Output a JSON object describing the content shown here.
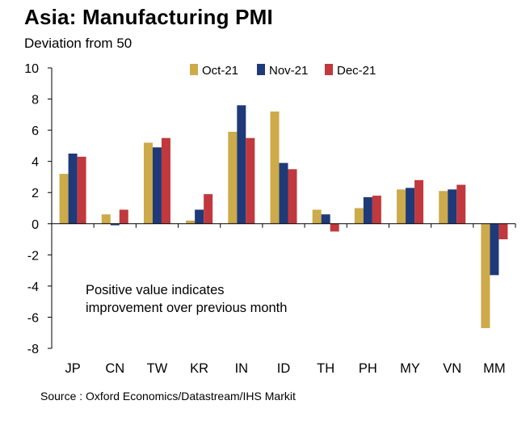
{
  "title": "Asia: Manufacturing PMI",
  "subtitle": "Deviation from 50",
  "source": "Source : Oxford Economics/Datastream/IHS Markit",
  "colors": {
    "oct": "#CDAA4A",
    "nov": "#1F3A78",
    "dec": "#C1393E"
  },
  "chart_data": {
    "type": "bar",
    "title": "Asia: Manufacturing PMI",
    "ylabel": "Deviation from 50",
    "xlabel": "",
    "ylim": [
      -8,
      10
    ],
    "yticks": [
      10,
      8,
      6,
      4,
      2,
      0,
      -2,
      -4,
      -6,
      -8
    ],
    "grid": false,
    "legend": "top-center",
    "categories": [
      "JP",
      "CN",
      "TW",
      "KR",
      "IN",
      "ID",
      "TH",
      "PH",
      "MY",
      "VN",
      "MM"
    ],
    "series": [
      {
        "name": "Oct-21",
        "values": [
          3.2,
          0.6,
          5.2,
          0.2,
          5.9,
          7.2,
          0.9,
          1.0,
          2.2,
          2.1,
          -6.7
        ]
      },
      {
        "name": "Nov-21",
        "values": [
          4.5,
          -0.1,
          4.9,
          0.9,
          7.6,
          3.9,
          0.6,
          1.7,
          2.3,
          2.2,
          -3.3
        ]
      },
      {
        "name": "Dec-21",
        "values": [
          4.3,
          0.9,
          5.5,
          1.9,
          5.5,
          3.5,
          -0.5,
          1.8,
          2.8,
          2.5,
          -1.0
        ]
      }
    ],
    "annotation": [
      "Positive value indicates",
      "improvement over previous month"
    ]
  }
}
